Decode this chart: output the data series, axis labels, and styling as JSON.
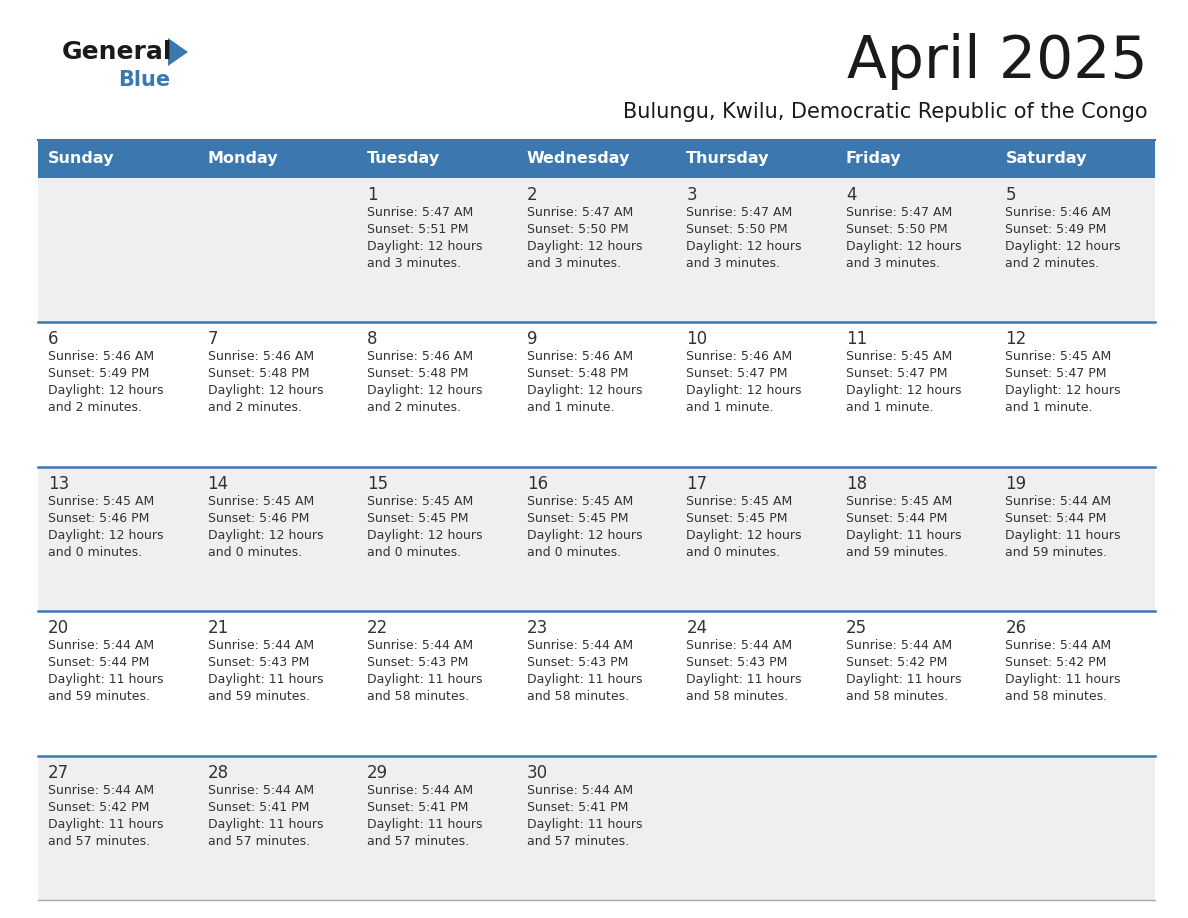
{
  "title": "April 2025",
  "subtitle": "Bulungu, Kwilu, Democratic Republic of the Congo",
  "days_of_week": [
    "Sunday",
    "Monday",
    "Tuesday",
    "Wednesday",
    "Thursday",
    "Friday",
    "Saturday"
  ],
  "header_bg": "#3b78b0",
  "header_text": "#ffffff",
  "row_bg_odd": "#efefef",
  "row_bg_even": "#ffffff",
  "row_line_color": "#3b78b0",
  "cell_text_color": "#333333",
  "day_num_color": "#333333",
  "calendar_data": [
    [
      {
        "day": "",
        "info": ""
      },
      {
        "day": "",
        "info": ""
      },
      {
        "day": "1",
        "info": "Sunrise: 5:47 AM\nSunset: 5:51 PM\nDaylight: 12 hours\nand 3 minutes."
      },
      {
        "day": "2",
        "info": "Sunrise: 5:47 AM\nSunset: 5:50 PM\nDaylight: 12 hours\nand 3 minutes."
      },
      {
        "day": "3",
        "info": "Sunrise: 5:47 AM\nSunset: 5:50 PM\nDaylight: 12 hours\nand 3 minutes."
      },
      {
        "day": "4",
        "info": "Sunrise: 5:47 AM\nSunset: 5:50 PM\nDaylight: 12 hours\nand 3 minutes."
      },
      {
        "day": "5",
        "info": "Sunrise: 5:46 AM\nSunset: 5:49 PM\nDaylight: 12 hours\nand 2 minutes."
      }
    ],
    [
      {
        "day": "6",
        "info": "Sunrise: 5:46 AM\nSunset: 5:49 PM\nDaylight: 12 hours\nand 2 minutes."
      },
      {
        "day": "7",
        "info": "Sunrise: 5:46 AM\nSunset: 5:48 PM\nDaylight: 12 hours\nand 2 minutes."
      },
      {
        "day": "8",
        "info": "Sunrise: 5:46 AM\nSunset: 5:48 PM\nDaylight: 12 hours\nand 2 minutes."
      },
      {
        "day": "9",
        "info": "Sunrise: 5:46 AM\nSunset: 5:48 PM\nDaylight: 12 hours\nand 1 minute."
      },
      {
        "day": "10",
        "info": "Sunrise: 5:46 AM\nSunset: 5:47 PM\nDaylight: 12 hours\nand 1 minute."
      },
      {
        "day": "11",
        "info": "Sunrise: 5:45 AM\nSunset: 5:47 PM\nDaylight: 12 hours\nand 1 minute."
      },
      {
        "day": "12",
        "info": "Sunrise: 5:45 AM\nSunset: 5:47 PM\nDaylight: 12 hours\nand 1 minute."
      }
    ],
    [
      {
        "day": "13",
        "info": "Sunrise: 5:45 AM\nSunset: 5:46 PM\nDaylight: 12 hours\nand 0 minutes."
      },
      {
        "day": "14",
        "info": "Sunrise: 5:45 AM\nSunset: 5:46 PM\nDaylight: 12 hours\nand 0 minutes."
      },
      {
        "day": "15",
        "info": "Sunrise: 5:45 AM\nSunset: 5:45 PM\nDaylight: 12 hours\nand 0 minutes."
      },
      {
        "day": "16",
        "info": "Sunrise: 5:45 AM\nSunset: 5:45 PM\nDaylight: 12 hours\nand 0 minutes."
      },
      {
        "day": "17",
        "info": "Sunrise: 5:45 AM\nSunset: 5:45 PM\nDaylight: 12 hours\nand 0 minutes."
      },
      {
        "day": "18",
        "info": "Sunrise: 5:45 AM\nSunset: 5:44 PM\nDaylight: 11 hours\nand 59 minutes."
      },
      {
        "day": "19",
        "info": "Sunrise: 5:44 AM\nSunset: 5:44 PM\nDaylight: 11 hours\nand 59 minutes."
      }
    ],
    [
      {
        "day": "20",
        "info": "Sunrise: 5:44 AM\nSunset: 5:44 PM\nDaylight: 11 hours\nand 59 minutes."
      },
      {
        "day": "21",
        "info": "Sunrise: 5:44 AM\nSunset: 5:43 PM\nDaylight: 11 hours\nand 59 minutes."
      },
      {
        "day": "22",
        "info": "Sunrise: 5:44 AM\nSunset: 5:43 PM\nDaylight: 11 hours\nand 58 minutes."
      },
      {
        "day": "23",
        "info": "Sunrise: 5:44 AM\nSunset: 5:43 PM\nDaylight: 11 hours\nand 58 minutes."
      },
      {
        "day": "24",
        "info": "Sunrise: 5:44 AM\nSunset: 5:43 PM\nDaylight: 11 hours\nand 58 minutes."
      },
      {
        "day": "25",
        "info": "Sunrise: 5:44 AM\nSunset: 5:42 PM\nDaylight: 11 hours\nand 58 minutes."
      },
      {
        "day": "26",
        "info": "Sunrise: 5:44 AM\nSunset: 5:42 PM\nDaylight: 11 hours\nand 58 minutes."
      }
    ],
    [
      {
        "day": "27",
        "info": "Sunrise: 5:44 AM\nSunset: 5:42 PM\nDaylight: 11 hours\nand 57 minutes."
      },
      {
        "day": "28",
        "info": "Sunrise: 5:44 AM\nSunset: 5:41 PM\nDaylight: 11 hours\nand 57 minutes."
      },
      {
        "day": "29",
        "info": "Sunrise: 5:44 AM\nSunset: 5:41 PM\nDaylight: 11 hours\nand 57 minutes."
      },
      {
        "day": "30",
        "info": "Sunrise: 5:44 AM\nSunset: 5:41 PM\nDaylight: 11 hours\nand 57 minutes."
      },
      {
        "day": "",
        "info": ""
      },
      {
        "day": "",
        "info": ""
      },
      {
        "day": "",
        "info": ""
      }
    ]
  ]
}
